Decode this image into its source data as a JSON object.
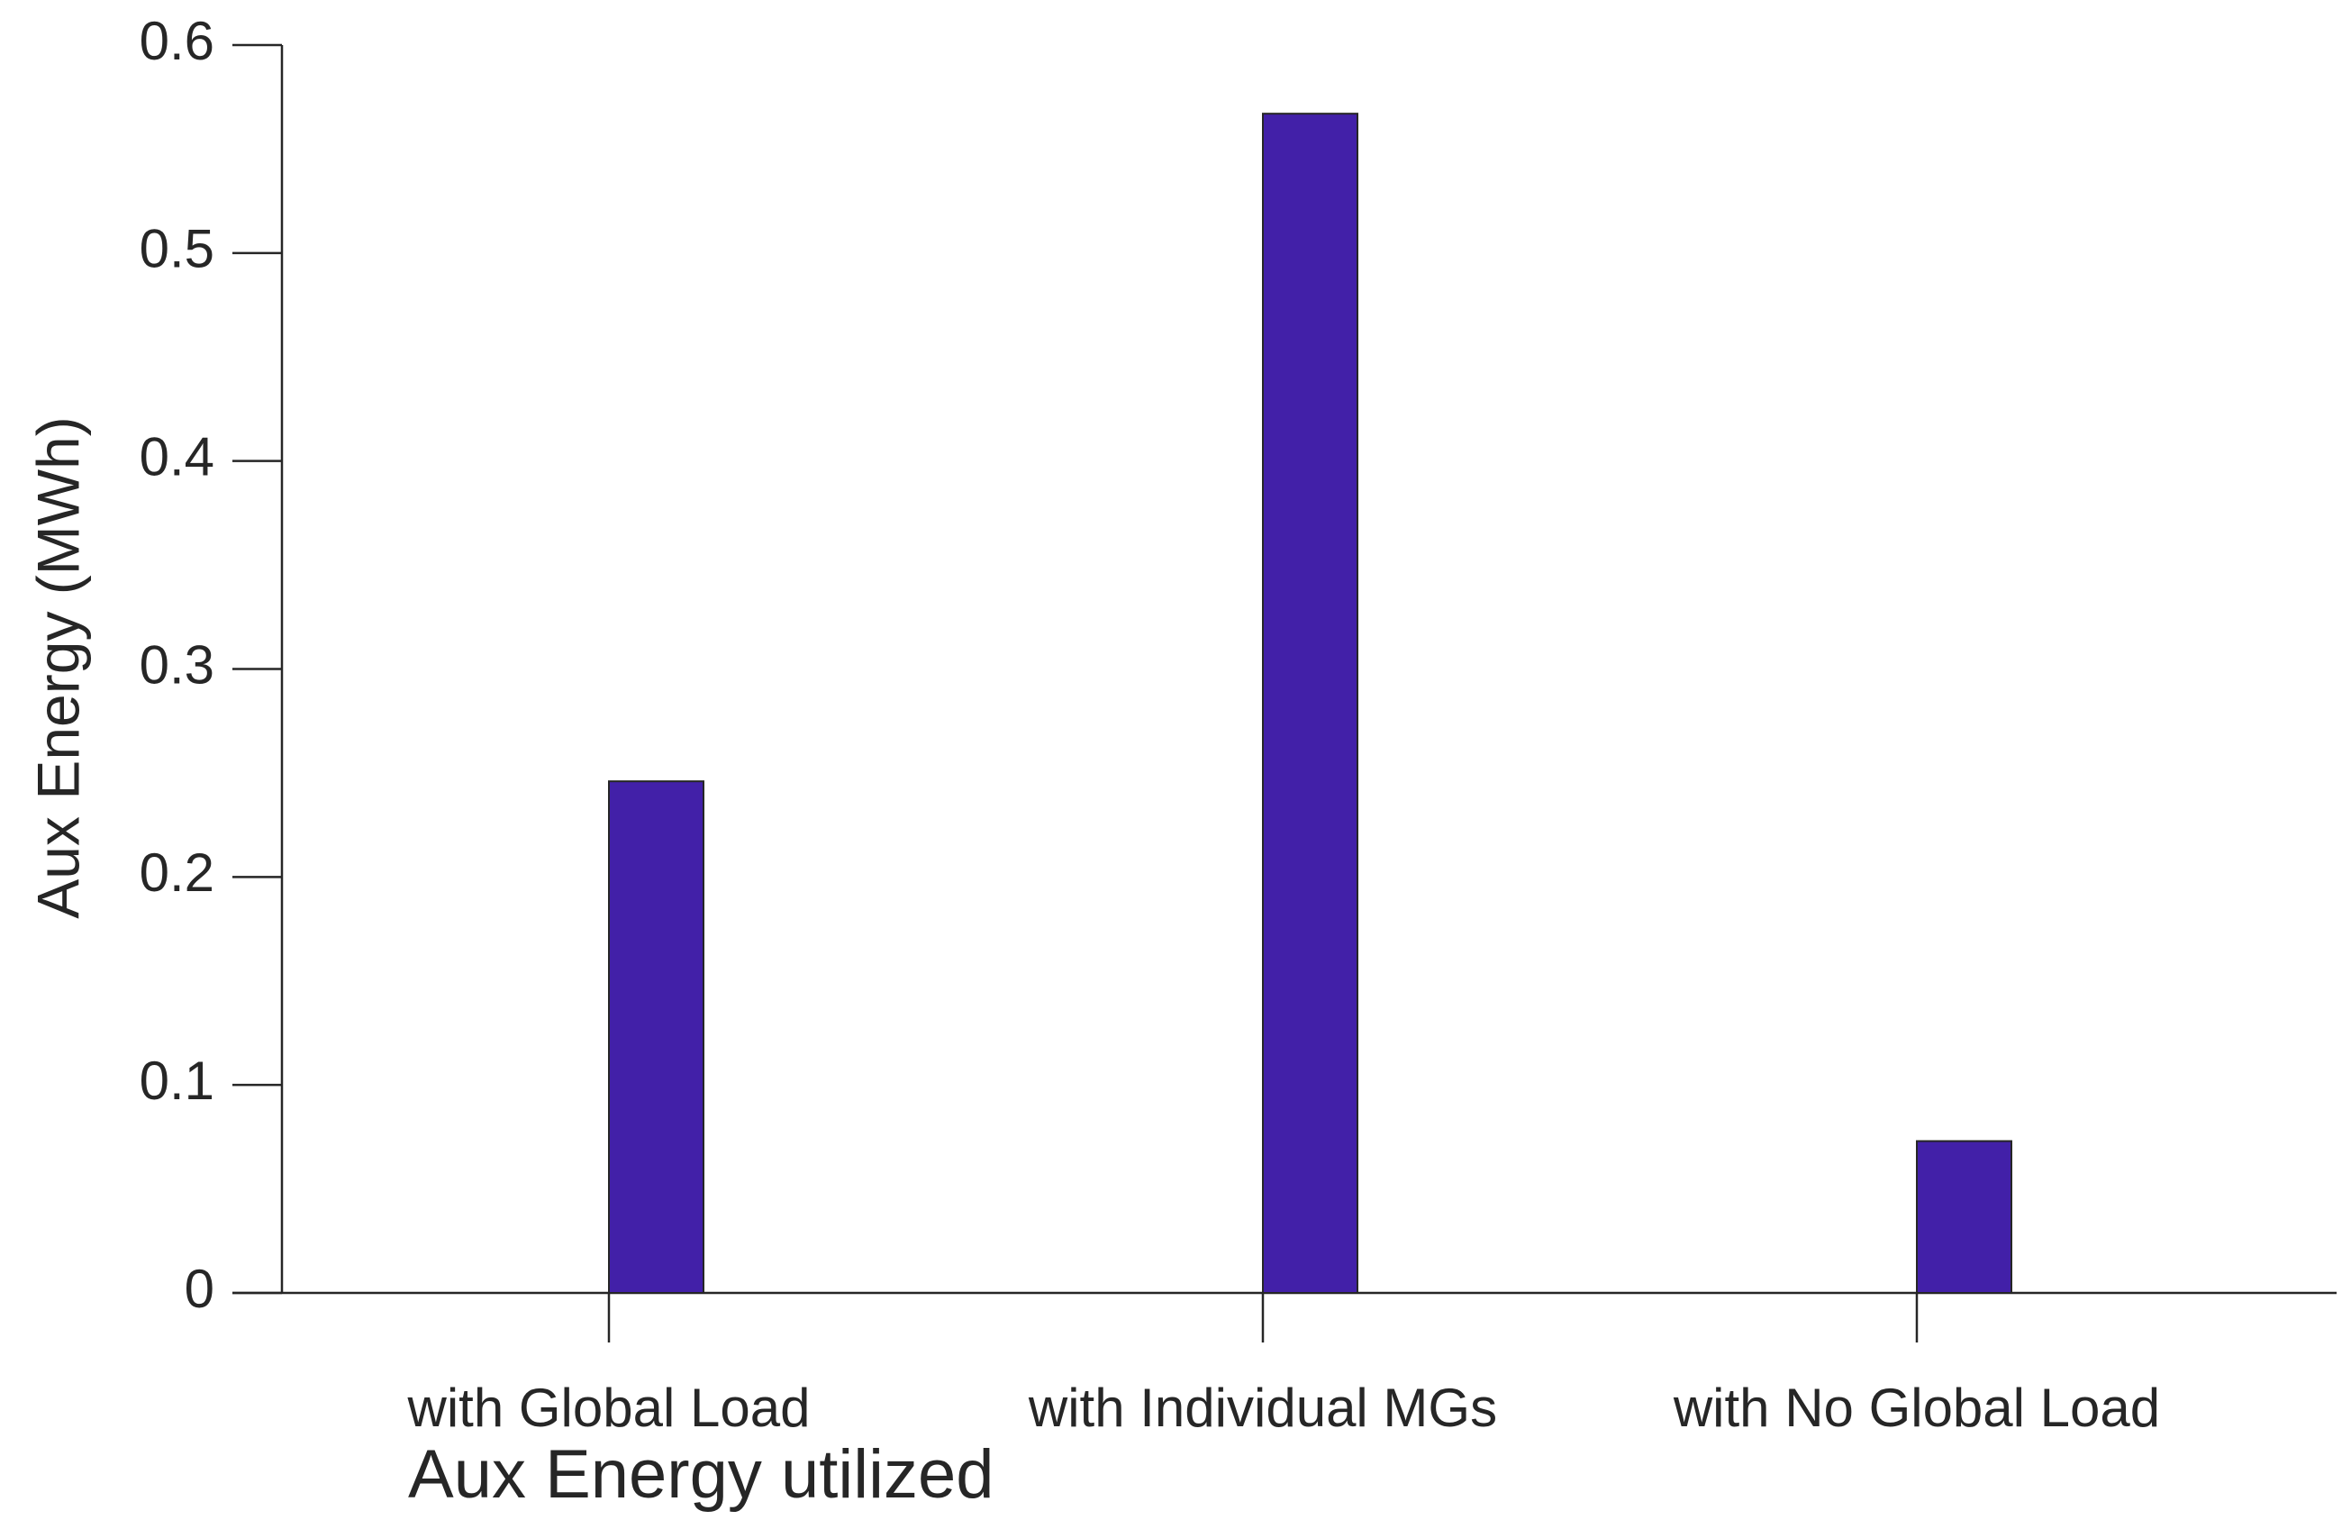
{
  "chart_data": {
    "type": "bar",
    "xlabel": "Aux Energy utilized",
    "ylabel": "Aux Energy (MWh)",
    "categories": [
      "with Global Load",
      "with Individual MGs",
      "with No Global Load"
    ],
    "values": [
      0.246,
      0.567,
      0.073
    ],
    "color": "#4220a8",
    "ylim": [
      0,
      0.6
    ],
    "yticks": [
      0,
      0.1,
      0.2,
      0.3,
      0.4,
      0.5,
      0.6
    ],
    "grid": false
  }
}
